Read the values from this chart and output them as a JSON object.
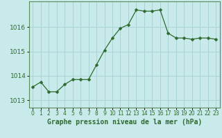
{
  "x": [
    0,
    1,
    2,
    3,
    4,
    5,
    6,
    7,
    8,
    9,
    10,
    11,
    12,
    13,
    14,
    15,
    16,
    17,
    18,
    19,
    20,
    21,
    22,
    23
  ],
  "y": [
    1013.55,
    1013.75,
    1013.35,
    1013.35,
    1013.65,
    1013.85,
    1013.85,
    1013.85,
    1014.45,
    1015.05,
    1015.55,
    1015.95,
    1016.1,
    1016.7,
    1016.65,
    1016.65,
    1016.7,
    1015.75,
    1015.55,
    1015.55,
    1015.5,
    1015.55,
    1015.55,
    1015.5
  ],
  "line_color": "#2d6a2d",
  "marker": "D",
  "marker_size": 2.5,
  "bg_color": "#c8eaea",
  "grid_color": "#aad4d4",
  "outer_bg": "#c8eaea",
  "xlabel": "Graphe pression niveau de la mer (hPa)",
  "xlabel_color": "#2d6a2d",
  "tick_color": "#2d6a2d",
  "axis_color": "#5a8a5a",
  "yticks": [
    1013,
    1014,
    1015,
    1016
  ],
  "ylim": [
    1012.7,
    1017.05
  ],
  "xlim": [
    -0.5,
    23.5
  ],
  "xtick_fontsize": 5.5,
  "ytick_fontsize": 6.5,
  "xlabel_fontsize": 7.0
}
